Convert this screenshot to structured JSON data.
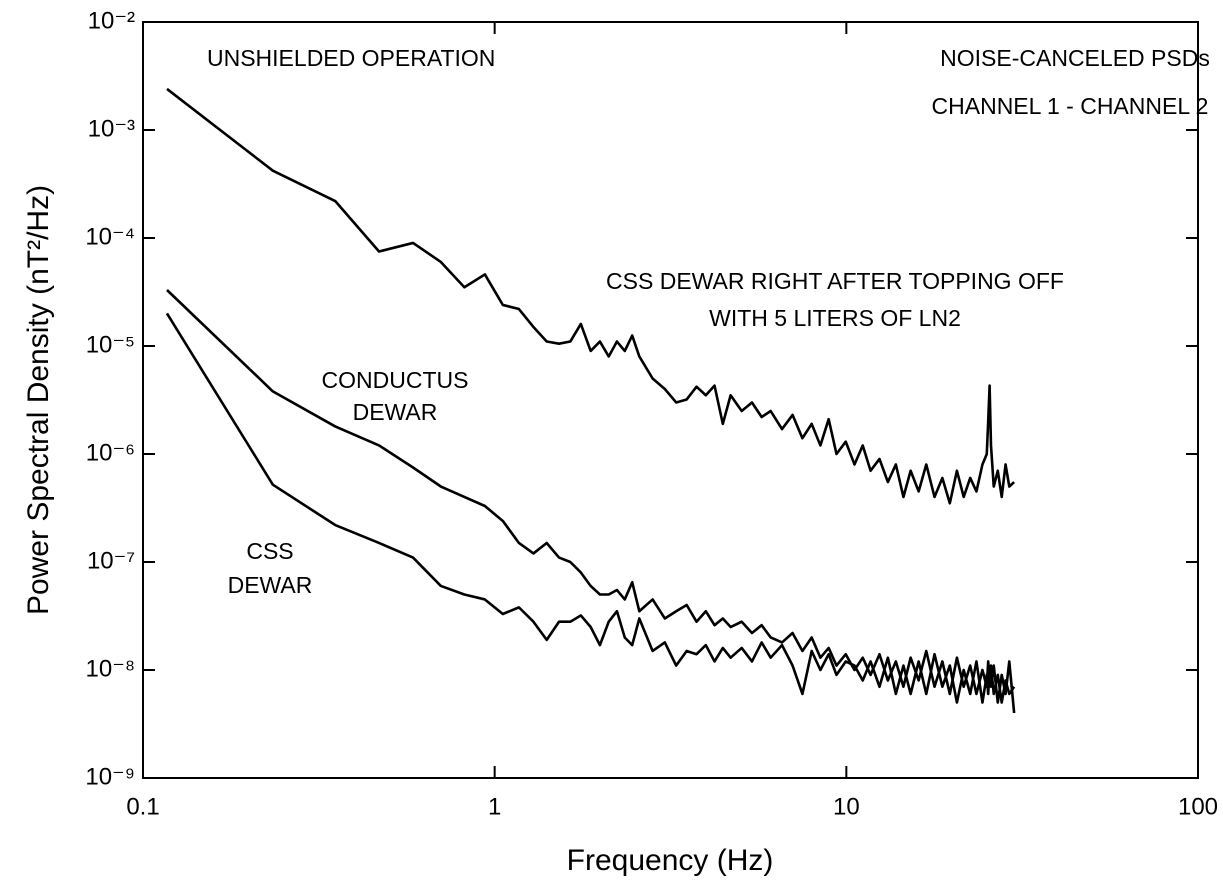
{
  "chart_data": {
    "type": "line",
    "xlabel": "Frequency (Hz)",
    "ylabel": "Power Spectral Density (nT²/Hz)",
    "xscale": "log",
    "yscale": "log",
    "xlim": [
      0.1,
      100
    ],
    "ylim": [
      1e-09,
      0.01
    ],
    "xticks": [
      0.1,
      1,
      10,
      100
    ],
    "yticks": [
      {
        "value": 1e-09,
        "label": "10⁻⁹"
      },
      {
        "value": 1e-08,
        "label": "10⁻⁸"
      },
      {
        "value": 1e-07,
        "label": "10⁻⁷"
      },
      {
        "value": 1e-06,
        "label": "10⁻⁶"
      },
      {
        "value": 1e-05,
        "label": "10⁻⁵"
      },
      {
        "value": 0.0001,
        "label": "10⁻⁴"
      },
      {
        "value": 0.001,
        "label": "10⁻³"
      },
      {
        "value": 0.01,
        "label": "10⁻²"
      }
    ],
    "annotations": [
      {
        "text": "UNSHIELDED OPERATION"
      },
      {
        "text": "NOISE-CANCELED PSDs"
      },
      {
        "text": "CHANNEL 1 - CHANNEL 2"
      },
      {
        "text": "CSS DEWAR RIGHT AFTER TOPPING OFF"
      },
      {
        "text": "WITH 5 LITERS OF LN2"
      },
      {
        "text": "CONDUCTUS"
      },
      {
        "text": "DEWAR"
      },
      {
        "text": "CSS"
      },
      {
        "text": "DEWAR"
      }
    ],
    "x": [
      0.117,
      0.234,
      0.352,
      0.469,
      0.586,
      0.703,
      0.82,
      0.938,
      1.055,
      1.172,
      1.289,
      1.406,
      1.524,
      1.641,
      1.758,
      1.875,
      1.992,
      2.11,
      2.227,
      2.344,
      2.461,
      2.578,
      2.813,
      3.047,
      3.282,
      3.516,
      3.75,
      3.985,
      4.219,
      4.454,
      4.688,
      5.04,
      5.391,
      5.743,
      6.094,
      6.563,
      7.032,
      7.501,
      7.97,
      8.438,
      8.907,
      9.376,
      9.962,
      10.548,
      11.134,
      11.72,
      12.423,
      13.126,
      13.83,
      14.533,
      15.236,
      16.056,
      16.877,
      17.814,
      18.752,
      19.69,
      20.627,
      21.565,
      22.502,
      23.44,
      24.378,
      25.081,
      25.315,
      25.55,
      25.784,
      26.253,
      26.956,
      27.659,
      28.362,
      29.066,
      30.003
    ],
    "series": [
      {
        "color": "#000000",
        "values": [
          0.0024,
          0.00042,
          0.00022,
          7.5e-05,
          9e-05,
          6e-05,
          3.5e-05,
          4.6e-05,
          2.4e-05,
          2.2e-05,
          1.5e-05,
          1.1e-05,
          1.05e-05,
          1.1e-05,
          1.6e-05,
          9e-06,
          1.1e-05,
          8e-06,
          1.1e-05,
          9e-06,
          1.25e-05,
          8e-06,
          5e-06,
          4e-06,
          3e-06,
          3.2e-06,
          4.2e-06,
          3.5e-06,
          4.3e-06,
          1.9e-06,
          3.5e-06,
          2.5e-06,
          3e-06,
          2.2e-06,
          2.5e-06,
          1.7e-06,
          2.3e-06,
          1.4e-06,
          1.9e-06,
          1.2e-06,
          2.1e-06,
          1e-06,
          1.3e-06,
          8e-07,
          1.2e-06,
          7e-07,
          9e-07,
          5.5e-07,
          8e-07,
          4e-07,
          7e-07,
          4.5e-07,
          8e-07,
          4e-07,
          6e-07,
          3.5e-07,
          7e-07,
          4e-07,
          6e-07,
          4.5e-07,
          8e-07,
          1e-06,
          2e-06,
          4.3e-06,
          1.2e-06,
          5e-07,
          7e-07,
          4e-07,
          8e-07,
          5e-07,
          5.5e-07
        ]
      },
      {
        "color": "#000000",
        "values": [
          3.3e-05,
          3.8e-06,
          1.8e-06,
          1.2e-06,
          7.5e-07,
          5e-07,
          4e-07,
          3.3e-07,
          2.4e-07,
          1.5e-07,
          1.2e-07,
          1.5e-07,
          1.1e-07,
          1e-07,
          8e-08,
          6e-08,
          5e-08,
          5e-08,
          5.5e-08,
          4.5e-08,
          6.5e-08,
          3.5e-08,
          4.5e-08,
          3e-08,
          3.5e-08,
          4e-08,
          2.8e-08,
          3.5e-08,
          2.6e-08,
          3e-08,
          2.5e-08,
          2.8e-08,
          2.2e-08,
          2.6e-08,
          2e-08,
          1.8e-08,
          2.2e-08,
          1.5e-08,
          2e-08,
          1.3e-08,
          1.6e-08,
          1.1e-08,
          1.4e-08,
          1e-08,
          1.3e-08,
          9e-09,
          1.4e-08,
          8e-09,
          1.2e-08,
          7e-09,
          1.3e-08,
          8e-09,
          1.5e-08,
          7e-09,
          1.2e-08,
          6e-09,
          1.3e-08,
          7e-09,
          1.1e-08,
          6e-09,
          1e-08,
          7e-09,
          1.2e-08,
          8e-09,
          1.1e-08,
          6e-09,
          9e-09,
          5e-09,
          8e-09,
          6e-09,
          7e-09
        ]
      },
      {
        "color": "#000000",
        "values": [
          2e-05,
          5.2e-07,
          2.2e-07,
          1.5e-07,
          1.1e-07,
          6e-08,
          5e-08,
          4.5e-08,
          3.3e-08,
          3.8e-08,
          2.8e-08,
          1.9e-08,
          2.8e-08,
          2.8e-08,
          3.2e-08,
          2.5e-08,
          1.7e-08,
          2.8e-08,
          3.5e-08,
          2e-08,
          1.7e-08,
          3e-08,
          1.5e-08,
          1.8e-08,
          1.1e-08,
          1.5e-08,
          1.4e-08,
          1.7e-08,
          1.2e-08,
          1.6e-08,
          1.3e-08,
          1.6e-08,
          1.2e-08,
          1.8e-08,
          1.3e-08,
          1.7e-08,
          1.1e-08,
          6e-09,
          1.5e-08,
          1e-08,
          1.4e-08,
          9e-09,
          1.2e-08,
          1.1e-08,
          8e-09,
          1.2e-08,
          7e-09,
          1.3e-08,
          6e-09,
          1.1e-08,
          6e-09,
          1.2e-08,
          6e-09,
          1.4e-08,
          7e-09,
          1.1e-08,
          5e-09,
          1e-08,
          6e-09,
          1.2e-08,
          5e-09,
          9e-09,
          6e-09,
          1e-08,
          7e-09,
          1.1e-08,
          5e-09,
          9e-09,
          6e-09,
          1.2e-08,
          4e-09
        ]
      }
    ]
  }
}
